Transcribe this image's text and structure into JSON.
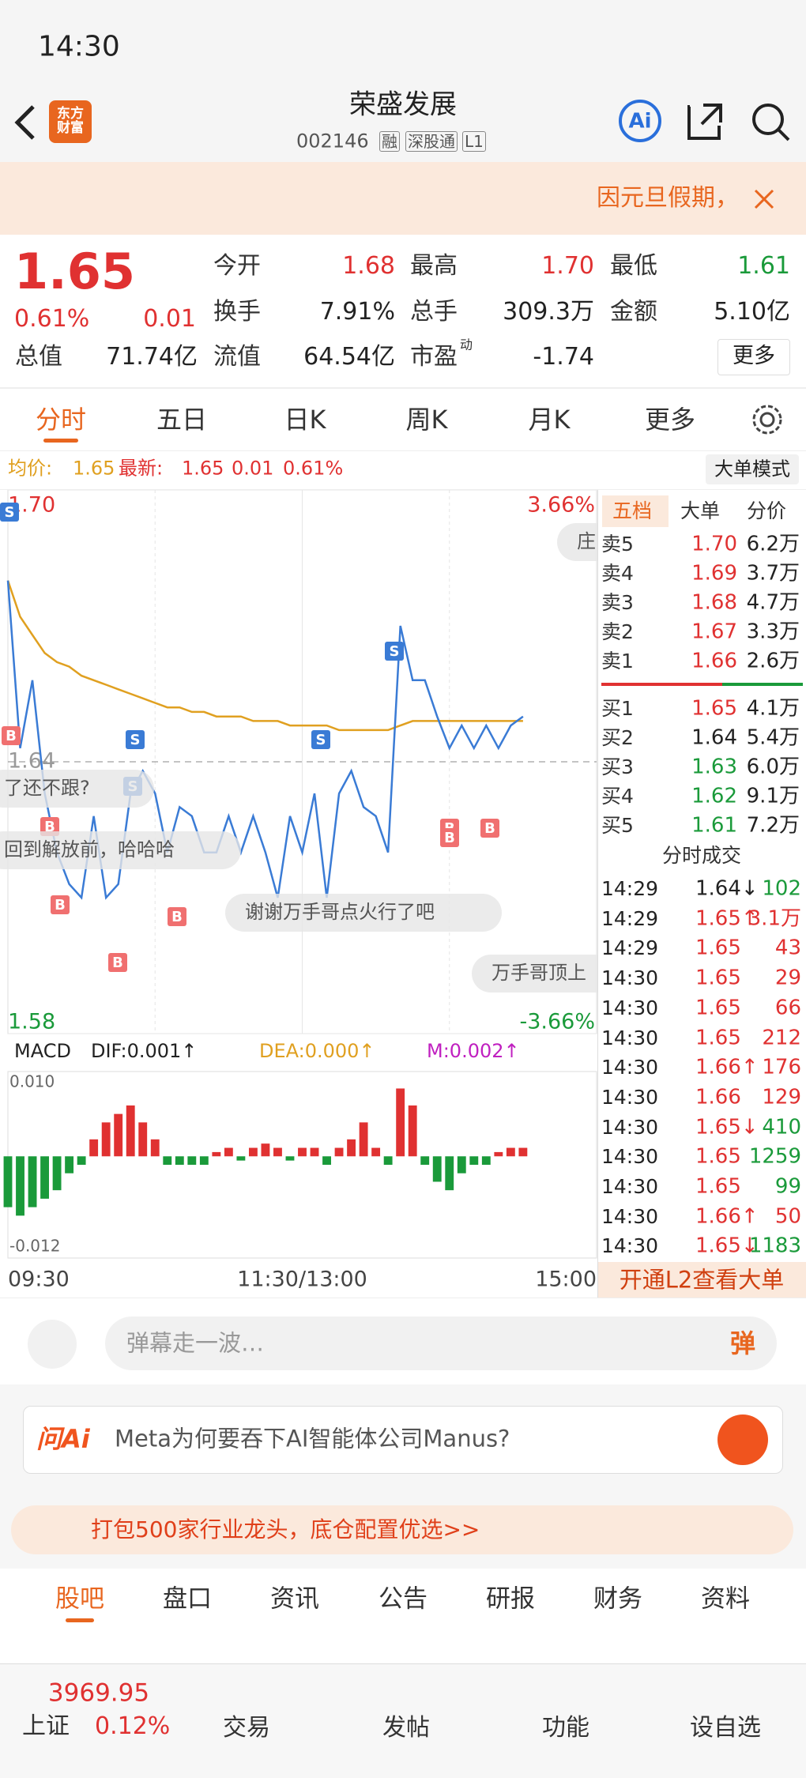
{
  "status": {
    "time": "14:30"
  },
  "header": {
    "title": "荣盛发展",
    "code": "002146",
    "tags": [
      "融",
      "深股通",
      "L1"
    ],
    "logo": "东方财富"
  },
  "notice": {
    "text": "因元旦假期，"
  },
  "quote": {
    "price": "1.65",
    "pct": "0.61%",
    "change": "0.01",
    "more": "更多",
    "pe_mark": "动",
    "fields": [
      {
        "label": "今开",
        "value": "1.68",
        "color": "#e03131"
      },
      {
        "label": "最高",
        "value": "1.70",
        "color": "#e03131"
      },
      {
        "label": "最低",
        "value": "1.61",
        "color": "#1a9a3a"
      },
      {
        "label": "换手",
        "value": "7.91%",
        "color": "#222"
      },
      {
        "label": "总手",
        "value": "309.3万",
        "color": "#222"
      },
      {
        "label": "金额",
        "value": "5.10亿",
        "color": "#222"
      },
      {
        "label": "总值",
        "value": "71.74亿",
        "color": "#222"
      },
      {
        "label": "流值",
        "value": "64.54亿",
        "color": "#222"
      },
      {
        "label": "市盈",
        "value": "-1.74",
        "color": "#222"
      }
    ]
  },
  "tabs": [
    "分时",
    "五日",
    "日K",
    "周K",
    "月K",
    "更多"
  ],
  "info": {
    "avg_label": "均价:",
    "avg": "1.65",
    "latest_label": "最新:",
    "latest": "1.65",
    "change": "0.01",
    "pct": "0.61%",
    "mode": "大单模式"
  },
  "chart_data": {
    "type": "line",
    "categories": [
      "09:30",
      null,
      null,
      null,
      null,
      null,
      null,
      null,
      null,
      null,
      null,
      null,
      null,
      null,
      null,
      null,
      null,
      null,
      null,
      null,
      null,
      null,
      null,
      null,
      "11:30/13:00",
      null,
      null,
      null,
      null,
      null,
      null,
      null,
      null,
      null,
      null,
      null,
      null,
      null,
      null,
      null,
      null,
      null,
      null,
      null,
      null,
      null,
      null,
      null,
      "15:00"
    ],
    "series": [
      {
        "name": "price",
        "color": "#3a7bd5",
        "values": [
          1.68,
          1.643,
          1.658,
          1.633,
          1.62,
          1.613,
          1.61,
          1.628,
          1.61,
          1.613,
          1.633,
          1.638,
          1.633,
          1.62,
          1.63,
          1.628,
          1.62,
          1.62,
          1.628,
          1.62,
          1.628,
          1.62,
          1.61,
          1.628,
          1.62,
          1.633,
          1.61,
          1.633,
          1.638,
          1.63,
          1.628,
          1.62,
          1.67,
          1.658,
          1.658,
          1.65,
          1.643,
          1.648,
          1.643,
          1.648,
          1.643,
          1.648,
          1.65,
          null,
          null,
          null,
          null,
          null,
          null
        ]
      },
      {
        "name": "avg",
        "color": "#e0a020",
        "values": [
          1.68,
          1.672,
          1.668,
          1.664,
          1.662,
          1.661,
          1.659,
          1.658,
          1.657,
          1.656,
          1.655,
          1.654,
          1.653,
          1.652,
          1.652,
          1.651,
          1.651,
          1.65,
          1.65,
          1.65,
          1.649,
          1.649,
          1.649,
          1.648,
          1.648,
          1.648,
          1.648,
          1.647,
          1.647,
          1.647,
          1.647,
          1.647,
          1.648,
          1.649,
          1.649,
          1.649,
          1.649,
          1.649,
          1.649,
          1.649,
          1.649,
          1.649,
          1.649,
          null,
          null,
          null,
          null,
          null,
          null
        ]
      }
    ],
    "ylim": [
      1.58,
      1.7
    ],
    "yticks": [
      {
        "value": 1.7,
        "label": "1.70"
      },
      {
        "value": 1.64,
        "label": "1.64"
      },
      {
        "value": 1.58,
        "label": "1.58"
      }
    ],
    "y2lim": [
      -3.66,
      3.66
    ],
    "y2ticks": [
      {
        "value": 3.66,
        "label": "3.66%"
      },
      {
        "value": -3.66,
        "label": "-3.66%"
      }
    ],
    "grid": true,
    "markers": [
      "S",
      "B",
      "B",
      "B",
      "B",
      "S",
      "S",
      "B",
      "S",
      "S",
      "B",
      "B",
      "B"
    ],
    "danmaku": [
      "庄",
      "了还不跟?",
      "回到解放前，哈哈哈",
      "谢谢万手哥点火行了吧",
      "万手哥顶上"
    ]
  },
  "macd": {
    "type": "bar",
    "label": "MACD",
    "dif": "DIF:0.001↑",
    "dea": "DEA:0.000↑",
    "m": "M:0.002↑",
    "values": [
      -0.006,
      -0.007,
      -0.006,
      -0.005,
      -0.004,
      -0.002,
      -0.001,
      0.002,
      0.004,
      0.005,
      0.006,
      0.004,
      0.002,
      -0.001,
      -0.001,
      -0.001,
      -0.001,
      0.0005,
      0.001,
      -0.0005,
      0.001,
      0.0015,
      0.001,
      -0.0005,
      0.001,
      0.001,
      -0.001,
      0.001,
      0.002,
      0.004,
      0.001,
      -0.001,
      0.008,
      0.006,
      -0.001,
      -0.003,
      -0.004,
      -0.002,
      -0.001,
      -0.001,
      0.0005,
      0.001,
      0.001,
      null,
      null,
      null,
      null,
      null,
      null
    ],
    "up_color": "#e03131",
    "down_color": "#1a9a3a",
    "ylim": [
      -0.012,
      0.01
    ],
    "yticks": [
      {
        "value": 0.01,
        "label": "0.010"
      },
      -0.012
    ]
  },
  "book": {
    "tabs": [
      "五档",
      "大单",
      "分价"
    ],
    "asks": [
      {
        "name": "卖5",
        "price": "1.70",
        "vol": "6.2万",
        "color": "#e03131"
      },
      {
        "name": "卖4",
        "price": "1.69",
        "vol": "3.7万",
        "color": "#e03131"
      },
      {
        "name": "卖3",
        "price": "1.68",
        "vol": "4.7万",
        "color": "#e03131"
      },
      {
        "name": "卖2",
        "price": "1.67",
        "vol": "3.3万",
        "color": "#e03131"
      },
      {
        "name": "卖1",
        "price": "1.66",
        "vol": "2.6万",
        "color": "#e03131"
      }
    ],
    "bids": [
      {
        "name": "买1",
        "price": "1.65",
        "vol": "4.1万",
        "color": "#e03131"
      },
      {
        "name": "买2",
        "price": "1.64",
        "vol": "5.4万",
        "color": "#222"
      },
      {
        "name": "买3",
        "price": "1.63",
        "vol": "6.0万",
        "color": "#1a9a3a"
      },
      {
        "name": "买4",
        "price": "1.62",
        "vol": "9.1万",
        "color": "#1a9a3a"
      },
      {
        "name": "买5",
        "price": "1.61",
        "vol": "7.2万",
        "color": "#1a9a3a"
      }
    ]
  },
  "trades": {
    "title": "分时成交",
    "rows": [
      {
        "time": "14:29",
        "price": "1.64↓",
        "vol": "102",
        "pcolor": "#222",
        "vcolor": "#1a9a3a"
      },
      {
        "time": "14:29",
        "price": "1.65↑",
        "vol": "3.1万",
        "pcolor": "#e03131",
        "vcolor": "#e03131"
      },
      {
        "time": "14:29",
        "price": "1.65",
        "vol": "43",
        "pcolor": "#e03131",
        "vcolor": "#e03131"
      },
      {
        "time": "14:30",
        "price": "1.65",
        "vol": "29",
        "pcolor": "#e03131",
        "vcolor": "#e03131"
      },
      {
        "time": "14:30",
        "price": "1.65",
        "vol": "66",
        "pcolor": "#e03131",
        "vcolor": "#e03131"
      },
      {
        "time": "14:30",
        "price": "1.65",
        "vol": "212",
        "pcolor": "#e03131",
        "vcolor": "#e03131"
      },
      {
        "time": "14:30",
        "price": "1.66↑",
        "vol": "176",
        "pcolor": "#e03131",
        "vcolor": "#e03131"
      },
      {
        "time": "14:30",
        "price": "1.66",
        "vol": "129",
        "pcolor": "#e03131",
        "vcolor": "#e03131"
      },
      {
        "time": "14:30",
        "price": "1.65↓",
        "vol": "410",
        "pcolor": "#e03131",
        "vcolor": "#1a9a3a"
      },
      {
        "time": "14:30",
        "price": "1.65",
        "vol": "1259",
        "pcolor": "#e03131",
        "vcolor": "#1a9a3a"
      },
      {
        "time": "14:30",
        "price": "1.65",
        "vol": "99",
        "pcolor": "#e03131",
        "vcolor": "#1a9a3a"
      },
      {
        "time": "14:30",
        "price": "1.66↑",
        "vol": "50",
        "pcolor": "#e03131",
        "vcolor": "#e03131"
      },
      {
        "time": "14:30",
        "price": "1.65↓",
        "vol": "1183",
        "pcolor": "#e03131",
        "vcolor": "#1a9a3a"
      }
    ],
    "l2": "开通L2查看大单"
  },
  "danmu": {
    "placeholder": "弹幕走一波…",
    "button": "弹"
  },
  "ai": {
    "logo": "问Ai",
    "text": "Meta为何要吞下AI智能体公司Manus?"
  },
  "ad": {
    "text": "打包500家行业龙头，底仓配置优选>>"
  },
  "bottom_tabs": [
    "股吧",
    "盘口",
    "资讯",
    "公告",
    "研报",
    "财务",
    "资料"
  ],
  "nav": {
    "index_value": "3969.95",
    "index_name": "上证",
    "index_pct": "0.12%",
    "items": [
      "交易",
      "发帖",
      "功能",
      "设自选"
    ]
  }
}
